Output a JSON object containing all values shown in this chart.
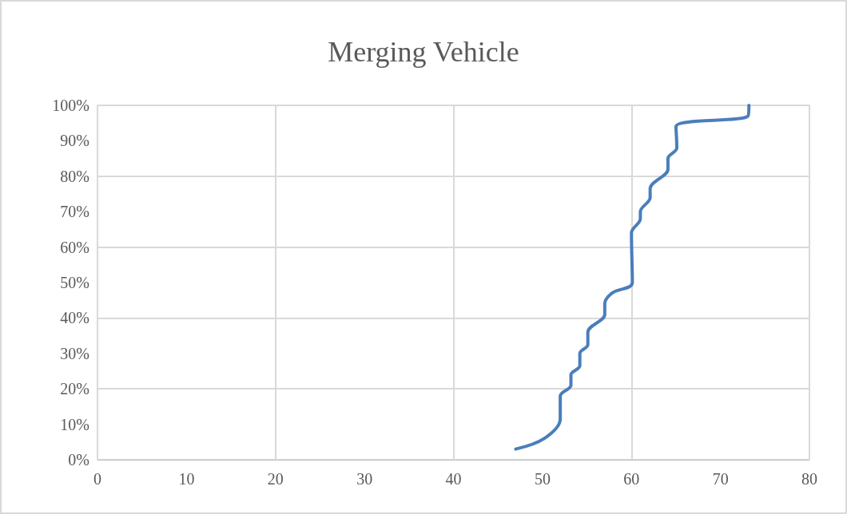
{
  "chart_data": {
    "type": "line",
    "title": "Merging Vehicle",
    "x": [
      47,
      50.2,
      52,
      52,
      53.2,
      53.2,
      54.2,
      54.2,
      55.1,
      55.1,
      57,
      57,
      57.8,
      60.1,
      60,
      61,
      61,
      62.1,
      62.1,
      64.1,
      64.1,
      65.1,
      65,
      73.1,
      73.2
    ],
    "series": [
      {
        "color": "#4a7ebb",
        "values": [
          3,
          6,
          11.5,
          18,
          21,
          24,
          26.5,
          30,
          32.5,
          36,
          41,
          44,
          47,
          50,
          64,
          68,
          70,
          74,
          76.5,
          82,
          85,
          88,
          94,
          97,
          100
        ]
      }
    ],
    "xlim": [
      0,
      80
    ],
    "xticks": [
      0,
      10,
      20,
      30,
      40,
      50,
      60,
      70,
      80
    ],
    "ylim": [
      0,
      100
    ],
    "yticks": [
      {
        "value": 0,
        "label": "0%"
      },
      {
        "value": 10,
        "label": "10%"
      },
      {
        "value": 20,
        "label": "20%"
      },
      {
        "value": 30,
        "label": "30%"
      },
      {
        "value": 40,
        "label": "40%"
      },
      {
        "value": 50,
        "label": "50%"
      },
      {
        "value": 60,
        "label": "60%"
      },
      {
        "value": 70,
        "label": "70%"
      },
      {
        "value": 80,
        "label": "80%"
      },
      {
        "value": 90,
        "label": "90%"
      },
      {
        "value": 100,
        "label": "100%"
      }
    ],
    "grid": true,
    "marker": "none",
    "line_style": "solid"
  }
}
